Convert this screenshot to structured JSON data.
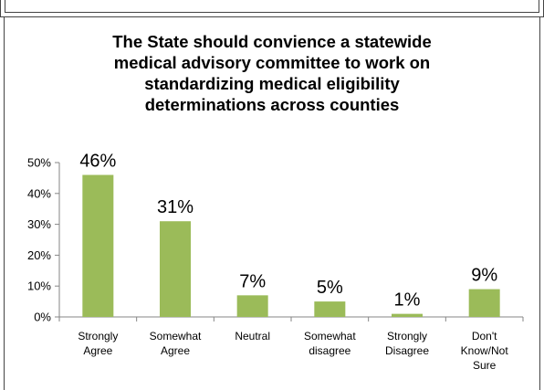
{
  "chart_data": {
    "type": "bar",
    "title_lines": [
      "The State should convience a statewide",
      "medical advisory committee to work on",
      "standardizing medical eligibility",
      "determinations across counties"
    ],
    "categories": [
      [
        "Strongly",
        "Agree"
      ],
      [
        "Somewhat",
        "Agree"
      ],
      [
        "Neutral"
      ],
      [
        "Somewhat",
        "disagree"
      ],
      [
        "Strongly",
        "Disagree"
      ],
      [
        "Don't",
        "Know/Not",
        "Sure"
      ]
    ],
    "values": [
      46,
      31,
      7,
      5,
      1,
      9
    ],
    "data_labels": [
      "46%",
      "31%",
      "7%",
      "5%",
      "1%",
      "9%"
    ],
    "y_ticks": [
      "0%",
      "10%",
      "20%",
      "30%",
      "40%",
      "50%"
    ],
    "ylim": [
      0,
      50
    ],
    "bar_color": "#9bbb59",
    "grid": false,
    "legend": "none"
  }
}
